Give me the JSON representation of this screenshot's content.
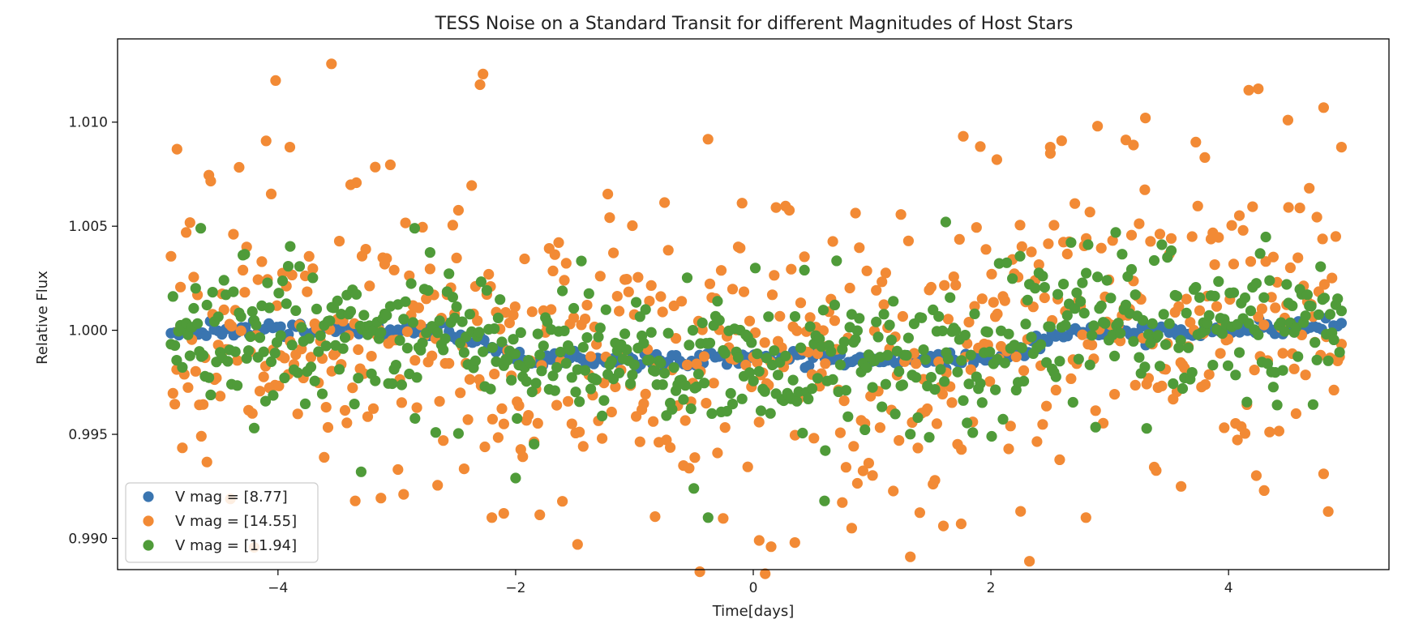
{
  "chart_data": {
    "type": "scatter",
    "title": "TESS Noise on a Standard Transit for different Magnitudes of Host Stars",
    "xlabel": "Time[days]",
    "ylabel": "Relative Flux",
    "xlim": [
      -5.35,
      5.35
    ],
    "ylim": [
      0.9885,
      1.014
    ],
    "xticks": [
      -4,
      -2,
      0,
      2,
      4
    ],
    "xtick_labels": [
      "−4",
      "−2",
      "0",
      "2",
      "4"
    ],
    "yticks": [
      0.99,
      0.995,
      1.0,
      1.005,
      1.01
    ],
    "ytick_labels": [
      "0.990",
      "0.995",
      "1.000",
      "1.005",
      "1.010"
    ],
    "grid": false,
    "legend_position": "lower-left",
    "transit_model": {
      "x_range": [
        -4.9,
        4.95
      ],
      "baseline": 1.0,
      "depth": 0.0014,
      "ingress_start": -2.6,
      "ingress_end": -2.0,
      "egress_start": 2.1,
      "egress_end": 2.6
    },
    "series": [
      {
        "name": "V mag = [8.77]",
        "color": "#3a75b0",
        "n_points": 300,
        "noise_sigma": 0.0002
      },
      {
        "name": "V mag = [14.55]",
        "color": "#f28a35",
        "n_points": 620,
        "noise_sigma": 0.0036,
        "notable_points": [
          [
            -3.55,
            1.0128
          ],
          [
            -4.02,
            1.012
          ],
          [
            -2.3,
            1.0118
          ],
          [
            4.25,
            1.0116
          ],
          [
            4.8,
            1.0107
          ],
          [
            3.3,
            1.0102
          ],
          [
            4.5,
            1.0101
          ],
          [
            -4.1,
            1.0091
          ],
          [
            3.2,
            1.0089
          ],
          [
            -4.85,
            1.0087
          ],
          [
            4.95,
            1.0088
          ],
          [
            -3.9,
            1.0088
          ],
          [
            2.05,
            1.0082
          ],
          [
            3.8,
            1.0083
          ],
          [
            2.5,
            1.0085
          ],
          [
            -4.4,
            0.9919
          ],
          [
            -3.35,
            0.9918
          ],
          [
            -2.1,
            0.9912
          ],
          [
            -2.2,
            0.991
          ],
          [
            0.05,
            0.9899
          ],
          [
            -0.45,
            0.9884
          ],
          [
            0.1,
            0.9883
          ],
          [
            0.15,
            0.9896
          ],
          [
            0.35,
            0.9898
          ],
          [
            1.6,
            0.9906
          ],
          [
            1.75,
            0.9907
          ],
          [
            2.25,
            0.9913
          ],
          [
            2.8,
            0.991
          ],
          [
            4.3,
            0.9923
          ],
          [
            4.8,
            0.9931
          ],
          [
            3.6,
            0.9925
          ]
        ]
      },
      {
        "name": "V mag = [11.94]",
        "color": "#4f9b39",
        "n_points": 620,
        "noise_sigma": 0.0018,
        "notable_points": [
          [
            1.62,
            1.0052
          ],
          [
            -2.85,
            1.0049
          ],
          [
            -4.65,
            1.0049
          ],
          [
            3.05,
            1.0047
          ],
          [
            -0.38,
            0.991
          ],
          [
            -0.5,
            0.9924
          ],
          [
            -3.3,
            0.9932
          ],
          [
            -4.2,
            0.9953
          ],
          [
            0.6,
            0.9918
          ],
          [
            -2.0,
            0.9929
          ]
        ]
      }
    ]
  }
}
